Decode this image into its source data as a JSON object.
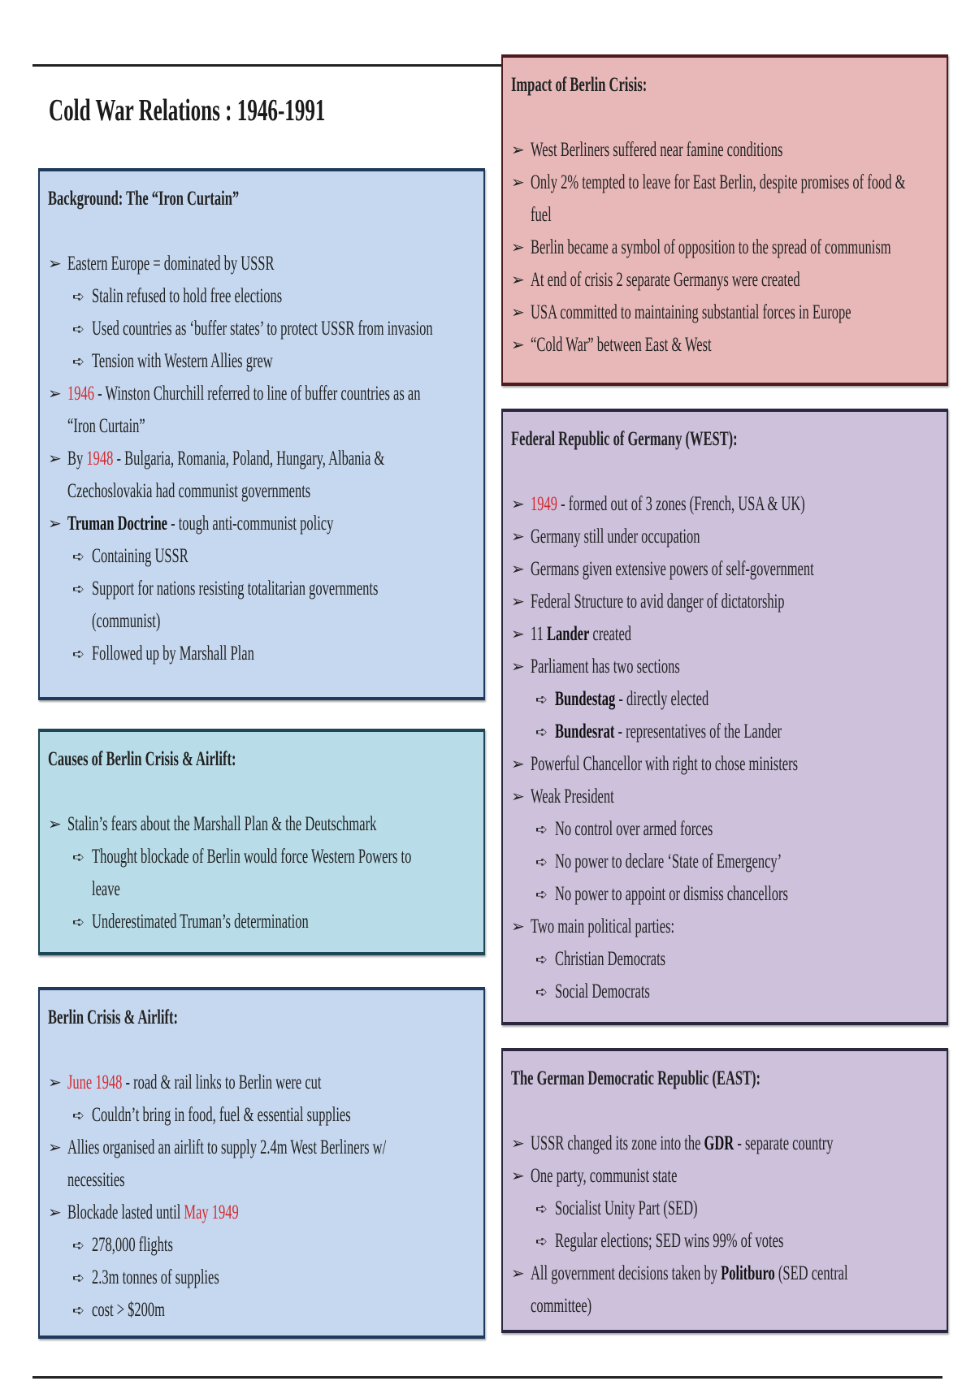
{
  "title": "Cold War Relations : 1946-1991",
  "colors": {
    "red_text": "#d42a2f",
    "blue_box": "#c6d8ef",
    "pink_box": "#e8b8b9",
    "teal_box": "#b8dce8",
    "purple_box": "#cdc1dc"
  },
  "icons": {
    "level1": "arrowhead-bullet-icon",
    "level2": "outline-arrow-bullet-icon"
  },
  "boxes": [
    {
      "id": "background",
      "title": "Background: The “Iron Curtain”",
      "items": [
        {
          "level": 1,
          "parts": [
            {
              "t": "Eastern Europe = dominated by USSR"
            }
          ]
        },
        {
          "level": 2,
          "parts": [
            {
              "t": "Stalin refused to hold free elections"
            }
          ]
        },
        {
          "level": 2,
          "parts": [
            {
              "t": "Used countries as ‘buffer states’ to protect USSR from invasion"
            }
          ]
        },
        {
          "level": 2,
          "parts": [
            {
              "t": "Tension with Western Allies grew"
            }
          ]
        },
        {
          "level": 1,
          "parts": [
            {
              "t": "1946",
              "s": "red"
            },
            {
              "t": " - Winston Churchill referred to line of buffer countries as an"
            }
          ],
          "cont": "“Iron Curtain”"
        },
        {
          "level": 1,
          "parts": [
            {
              "t": "By "
            },
            {
              "t": "1948",
              "s": "red"
            },
            {
              "t": " - Bulgaria, Romania, Poland, Hungary, Albania &"
            }
          ],
          "cont": "Czechoslovakia had communist governments"
        },
        {
          "level": 1,
          "parts": [
            {
              "t": "Truman Doctrine",
              "s": "b"
            },
            {
              "t": " - tough anti-communist policy"
            }
          ]
        },
        {
          "level": 2,
          "parts": [
            {
              "t": "Containing USSR"
            }
          ]
        },
        {
          "level": 2,
          "parts": [
            {
              "t": "Support for nations resisting totalitarian governments"
            }
          ],
          "cont": "(communist)"
        },
        {
          "level": 2,
          "parts": [
            {
              "t": "Followed up by Marshall Plan"
            }
          ]
        }
      ]
    },
    {
      "id": "causes",
      "title": "Causes of Berlin Crisis & Airlift:",
      "items": [
        {
          "level": 1,
          "parts": [
            {
              "t": "Stalin’s fears about the Marshall Plan & the Deutschmark"
            }
          ]
        },
        {
          "level": 2,
          "parts": [
            {
              "t": "Thought blockade of Berlin would force Western Powers to"
            }
          ],
          "cont": "leave"
        },
        {
          "level": 2,
          "parts": [
            {
              "t": "Underestimated Truman’s determination"
            }
          ]
        }
      ]
    },
    {
      "id": "airlift",
      "title": "Berlin Crisis & Airlift:",
      "items": [
        {
          "level": 1,
          "parts": [
            {
              "t": "June 1948",
              "s": "red"
            },
            {
              "t": " - road & rail links to Berlin were cut"
            }
          ]
        },
        {
          "level": 2,
          "parts": [
            {
              "t": "Couldn’t bring in food, fuel & essential supplies"
            }
          ]
        },
        {
          "level": 1,
          "parts": [
            {
              "t": "Allies organised an airlift to supply 2.4m West Berliners w/"
            }
          ],
          "cont": "necessities"
        },
        {
          "level": 1,
          "parts": [
            {
              "t": "Blockade lasted until "
            },
            {
              "t": "May 1949",
              "s": "red"
            }
          ]
        },
        {
          "level": 2,
          "parts": [
            {
              "t": "278,000 flights"
            }
          ]
        },
        {
          "level": 2,
          "parts": [
            {
              "t": "2.3m tonnes of supplies"
            }
          ]
        },
        {
          "level": 2,
          "parts": [
            {
              "t": "cost > $200m"
            }
          ]
        }
      ]
    },
    {
      "id": "impact",
      "title": "Impact of Berlin Crisis:",
      "items": [
        {
          "level": 1,
          "parts": [
            {
              "t": "West Berliners suffered near famine conditions"
            }
          ]
        },
        {
          "level": 1,
          "parts": [
            {
              "t": "Only 2% tempted to leave for East Berlin, despite promises of food &"
            }
          ],
          "cont": "fuel"
        },
        {
          "level": 1,
          "parts": [
            {
              "t": "Berlin became a symbol of opposition to the spread of communism"
            }
          ]
        },
        {
          "level": 1,
          "parts": [
            {
              "t": "At end of crisis 2 separate Germanys were created"
            }
          ]
        },
        {
          "level": 1,
          "parts": [
            {
              "t": "USA committed to maintaining substantial forces in Europe"
            }
          ]
        },
        {
          "level": 1,
          "parts": [
            {
              "t": "“Cold War” between East & West"
            }
          ]
        }
      ]
    },
    {
      "id": "frg",
      "title": "Federal Republic of Germany (WEST):",
      "items": [
        {
          "level": 1,
          "parts": [
            {
              "t": "1949",
              "s": "red"
            },
            {
              "t": " - formed out of 3 zones (French, USA & UK)"
            }
          ]
        },
        {
          "level": 1,
          "parts": [
            {
              "t": "Germany still under occupation"
            }
          ]
        },
        {
          "level": 1,
          "parts": [
            {
              "t": "Germans given extensive powers of self-government"
            }
          ]
        },
        {
          "level": 1,
          "parts": [
            {
              "t": "Federal Structure to avid danger of dictatorship"
            }
          ]
        },
        {
          "level": 1,
          "parts": [
            {
              "t": "11 "
            },
            {
              "t": "Lander",
              "s": "b"
            },
            {
              "t": " created"
            }
          ]
        },
        {
          "level": 1,
          "parts": [
            {
              "t": "Parliament has two sections"
            }
          ]
        },
        {
          "level": 2,
          "parts": [
            {
              "t": "Bundestag",
              "s": "b"
            },
            {
              "t": " - directly elected"
            }
          ]
        },
        {
          "level": 2,
          "parts": [
            {
              "t": "Bundesrat",
              "s": "b"
            },
            {
              "t": " - representatives of the Lander"
            }
          ]
        },
        {
          "level": 1,
          "parts": [
            {
              "t": "Powerful Chancellor with right to chose ministers"
            }
          ]
        },
        {
          "level": 1,
          "parts": [
            {
              "t": "Weak President"
            }
          ]
        },
        {
          "level": 2,
          "parts": [
            {
              "t": "No control over armed forces"
            }
          ]
        },
        {
          "level": 2,
          "parts": [
            {
              "t": "No power to declare ‘State of Emergency’"
            }
          ]
        },
        {
          "level": 2,
          "parts": [
            {
              "t": "No power to appoint or dismiss chancellors"
            }
          ]
        },
        {
          "level": 1,
          "parts": [
            {
              "t": "Two main political parties:"
            }
          ]
        },
        {
          "level": 2,
          "parts": [
            {
              "t": "Christian Democrats"
            }
          ]
        },
        {
          "level": 2,
          "parts": [
            {
              "t": "Social Democrats"
            }
          ]
        }
      ]
    },
    {
      "id": "gdr",
      "title": "The German Democratic Republic (EAST):",
      "items": [
        {
          "level": 1,
          "parts": [
            {
              "t": "USSR changed its zone into the "
            },
            {
              "t": "GDR",
              "s": "b"
            },
            {
              "t": " - separate country"
            }
          ]
        },
        {
          "level": 1,
          "parts": [
            {
              "t": "One party, communist state"
            }
          ]
        },
        {
          "level": 2,
          "parts": [
            {
              "t": "Socialist Unity Part (SED)"
            }
          ]
        },
        {
          "level": 2,
          "parts": [
            {
              "t": "Regular elections; SED wins 99% of votes"
            }
          ]
        },
        {
          "level": 1,
          "parts": [
            {
              "t": "All government decisions taken by "
            },
            {
              "t": "Politburo",
              "s": "b"
            },
            {
              "t": " (SED central"
            }
          ],
          "cont": "committee)"
        }
      ]
    }
  ]
}
